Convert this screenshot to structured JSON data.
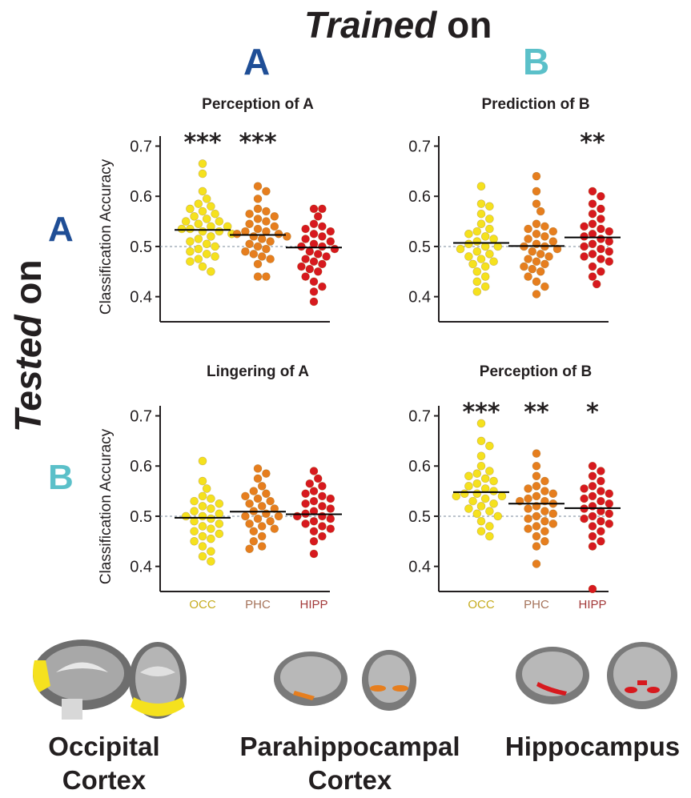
{
  "header": {
    "trained_italic": "Trained",
    "trained_rest": " on",
    "col_a": "A",
    "col_b": "B"
  },
  "side": {
    "tested_italic": "Tested",
    "tested_rest": " on",
    "row_a": "A",
    "row_b": "B"
  },
  "colors": {
    "dark_blue": "#1f4e96",
    "light_blue": "#5bc0c9",
    "occ": "#f5e11e",
    "phc": "#e67e1e",
    "hipp": "#d7191e",
    "occ_label": "#c6ac1f",
    "phc_label": "#a5735a",
    "hipp_label": "#a33a3a"
  },
  "regions": {
    "occ_line1": "Occipital",
    "occ_line2": "Cortex",
    "phc_line1": "Parahippocampal",
    "phc_line2": "Cortex",
    "hipp_line1": "Hippocampus"
  },
  "chart_data": [
    {
      "type": "scatter",
      "title": "Perception of A",
      "ylabel": "Classification Accuracy",
      "ylim": [
        0.35,
        0.72
      ],
      "yticks": [
        "0.4",
        "0.5",
        "0.6",
        "0.7"
      ],
      "chance": 0.5,
      "categories": [
        "OCC",
        "PHC",
        "HIPP"
      ],
      "show_ylabel": true,
      "show_xlabels": false,
      "means": [
        0.533,
        0.523,
        0.498
      ],
      "significance": [
        "***",
        "***",
        ""
      ],
      "series": [
        {
          "name": "OCC",
          "values": [
            0.665,
            0.645,
            0.61,
            0.595,
            0.585,
            0.58,
            0.575,
            0.57,
            0.565,
            0.56,
            0.555,
            0.55,
            0.55,
            0.545,
            0.54,
            0.54,
            0.535,
            0.535,
            0.53,
            0.53,
            0.525,
            0.52,
            0.515,
            0.51,
            0.505,
            0.5,
            0.495,
            0.49,
            0.485,
            0.48,
            0.475,
            0.47,
            0.46,
            0.45
          ]
        },
        {
          "name": "PHC",
          "values": [
            0.62,
            0.61,
            0.595,
            0.575,
            0.57,
            0.565,
            0.56,
            0.555,
            0.55,
            0.545,
            0.54,
            0.535,
            0.53,
            0.53,
            0.525,
            0.525,
            0.52,
            0.52,
            0.515,
            0.51,
            0.505,
            0.5,
            0.495,
            0.49,
            0.485,
            0.48,
            0.475,
            0.465,
            0.44,
            0.44
          ]
        },
        {
          "name": "HIPP",
          "values": [
            0.575,
            0.575,
            0.56,
            0.545,
            0.54,
            0.535,
            0.53,
            0.525,
            0.52,
            0.515,
            0.51,
            0.505,
            0.5,
            0.5,
            0.495,
            0.49,
            0.485,
            0.48,
            0.475,
            0.47,
            0.465,
            0.46,
            0.455,
            0.45,
            0.44,
            0.43,
            0.42,
            0.41,
            0.39
          ]
        }
      ]
    },
    {
      "type": "scatter",
      "title": "Prediction of B",
      "ylim": [
        0.35,
        0.72
      ],
      "yticks": [
        "0.4",
        "0.5",
        "0.6",
        "0.7"
      ],
      "chance": 0.5,
      "categories": [
        "OCC",
        "PHC",
        "HIPP"
      ],
      "show_ylabel": false,
      "show_xlabels": false,
      "means": [
        0.507,
        0.501,
        0.518
      ],
      "significance": [
        "",
        "",
        "**"
      ],
      "series": [
        {
          "name": "OCC",
          "values": [
            0.62,
            0.585,
            0.58,
            0.565,
            0.555,
            0.545,
            0.535,
            0.53,
            0.525,
            0.52,
            0.515,
            0.51,
            0.505,
            0.5,
            0.5,
            0.495,
            0.49,
            0.485,
            0.48,
            0.475,
            0.47,
            0.465,
            0.46,
            0.45,
            0.44,
            0.43,
            0.42,
            0.41
          ]
        },
        {
          "name": "PHC",
          "values": [
            0.64,
            0.61,
            0.585,
            0.57,
            0.545,
            0.54,
            0.535,
            0.53,
            0.525,
            0.52,
            0.515,
            0.51,
            0.505,
            0.5,
            0.5,
            0.495,
            0.49,
            0.485,
            0.48,
            0.475,
            0.47,
            0.465,
            0.46,
            0.455,
            0.45,
            0.44,
            0.43,
            0.42,
            0.405
          ]
        },
        {
          "name": "HIPP",
          "values": [
            0.61,
            0.6,
            0.585,
            0.575,
            0.565,
            0.555,
            0.545,
            0.54,
            0.535,
            0.53,
            0.525,
            0.52,
            0.515,
            0.51,
            0.505,
            0.5,
            0.495,
            0.49,
            0.485,
            0.48,
            0.475,
            0.47,
            0.46,
            0.45,
            0.44,
            0.425
          ]
        }
      ]
    },
    {
      "type": "scatter",
      "title": "Lingering of A",
      "ylabel": "Classification Accuracy",
      "ylim": [
        0.35,
        0.72
      ],
      "yticks": [
        "0.4",
        "0.5",
        "0.6",
        "0.7"
      ],
      "chance": 0.5,
      "categories": [
        "OCC",
        "PHC",
        "HIPP"
      ],
      "show_ylabel": true,
      "show_xlabels": true,
      "means": [
        0.497,
        0.509,
        0.504
      ],
      "significance": [
        "",
        "",
        ""
      ],
      "series": [
        {
          "name": "OCC",
          "values": [
            0.61,
            0.57,
            0.555,
            0.54,
            0.535,
            0.53,
            0.525,
            0.52,
            0.515,
            0.51,
            0.505,
            0.5,
            0.5,
            0.495,
            0.49,
            0.485,
            0.48,
            0.475,
            0.47,
            0.465,
            0.46,
            0.455,
            0.45,
            0.44,
            0.43,
            0.42,
            0.41
          ]
        },
        {
          "name": "PHC",
          "values": [
            0.595,
            0.585,
            0.575,
            0.56,
            0.55,
            0.545,
            0.54,
            0.535,
            0.53,
            0.525,
            0.52,
            0.515,
            0.51,
            0.505,
            0.5,
            0.5,
            0.495,
            0.49,
            0.485,
            0.48,
            0.475,
            0.47,
            0.46,
            0.45,
            0.44,
            0.435
          ]
        },
        {
          "name": "HIPP",
          "values": [
            0.59,
            0.575,
            0.565,
            0.56,
            0.55,
            0.545,
            0.54,
            0.535,
            0.53,
            0.525,
            0.52,
            0.515,
            0.51,
            0.505,
            0.5,
            0.5,
            0.495,
            0.49,
            0.485,
            0.48,
            0.475,
            0.47,
            0.46,
            0.45,
            0.425
          ]
        }
      ]
    },
    {
      "type": "scatter",
      "title": "Perception of B",
      "ylim": [
        0.35,
        0.72
      ],
      "yticks": [
        "0.4",
        "0.5",
        "0.6",
        "0.7"
      ],
      "chance": 0.5,
      "categories": [
        "OCC",
        "PHC",
        "HIPP"
      ],
      "show_ylabel": false,
      "show_xlabels": true,
      "means": [
        0.548,
        0.525,
        0.516
      ],
      "significance": [
        "***",
        "**",
        "*"
      ],
      "series": [
        {
          "name": "OCC",
          "values": [
            0.685,
            0.65,
            0.64,
            0.62,
            0.6,
            0.59,
            0.585,
            0.58,
            0.575,
            0.57,
            0.565,
            0.56,
            0.555,
            0.55,
            0.545,
            0.545,
            0.54,
            0.54,
            0.535,
            0.53,
            0.525,
            0.52,
            0.515,
            0.51,
            0.505,
            0.5,
            0.49,
            0.48,
            0.47,
            0.46
          ]
        },
        {
          "name": "PHC",
          "values": [
            0.625,
            0.6,
            0.58,
            0.57,
            0.56,
            0.555,
            0.55,
            0.545,
            0.54,
            0.535,
            0.53,
            0.53,
            0.525,
            0.52,
            0.515,
            0.51,
            0.505,
            0.5,
            0.495,
            0.49,
            0.485,
            0.48,
            0.475,
            0.47,
            0.46,
            0.45,
            0.44,
            0.405
          ]
        },
        {
          "name": "HIPP",
          "values": [
            0.6,
            0.59,
            0.58,
            0.57,
            0.56,
            0.555,
            0.55,
            0.545,
            0.54,
            0.535,
            0.53,
            0.525,
            0.52,
            0.515,
            0.51,
            0.505,
            0.5,
            0.495,
            0.49,
            0.485,
            0.48,
            0.47,
            0.46,
            0.45,
            0.44,
            0.355
          ]
        }
      ]
    }
  ]
}
